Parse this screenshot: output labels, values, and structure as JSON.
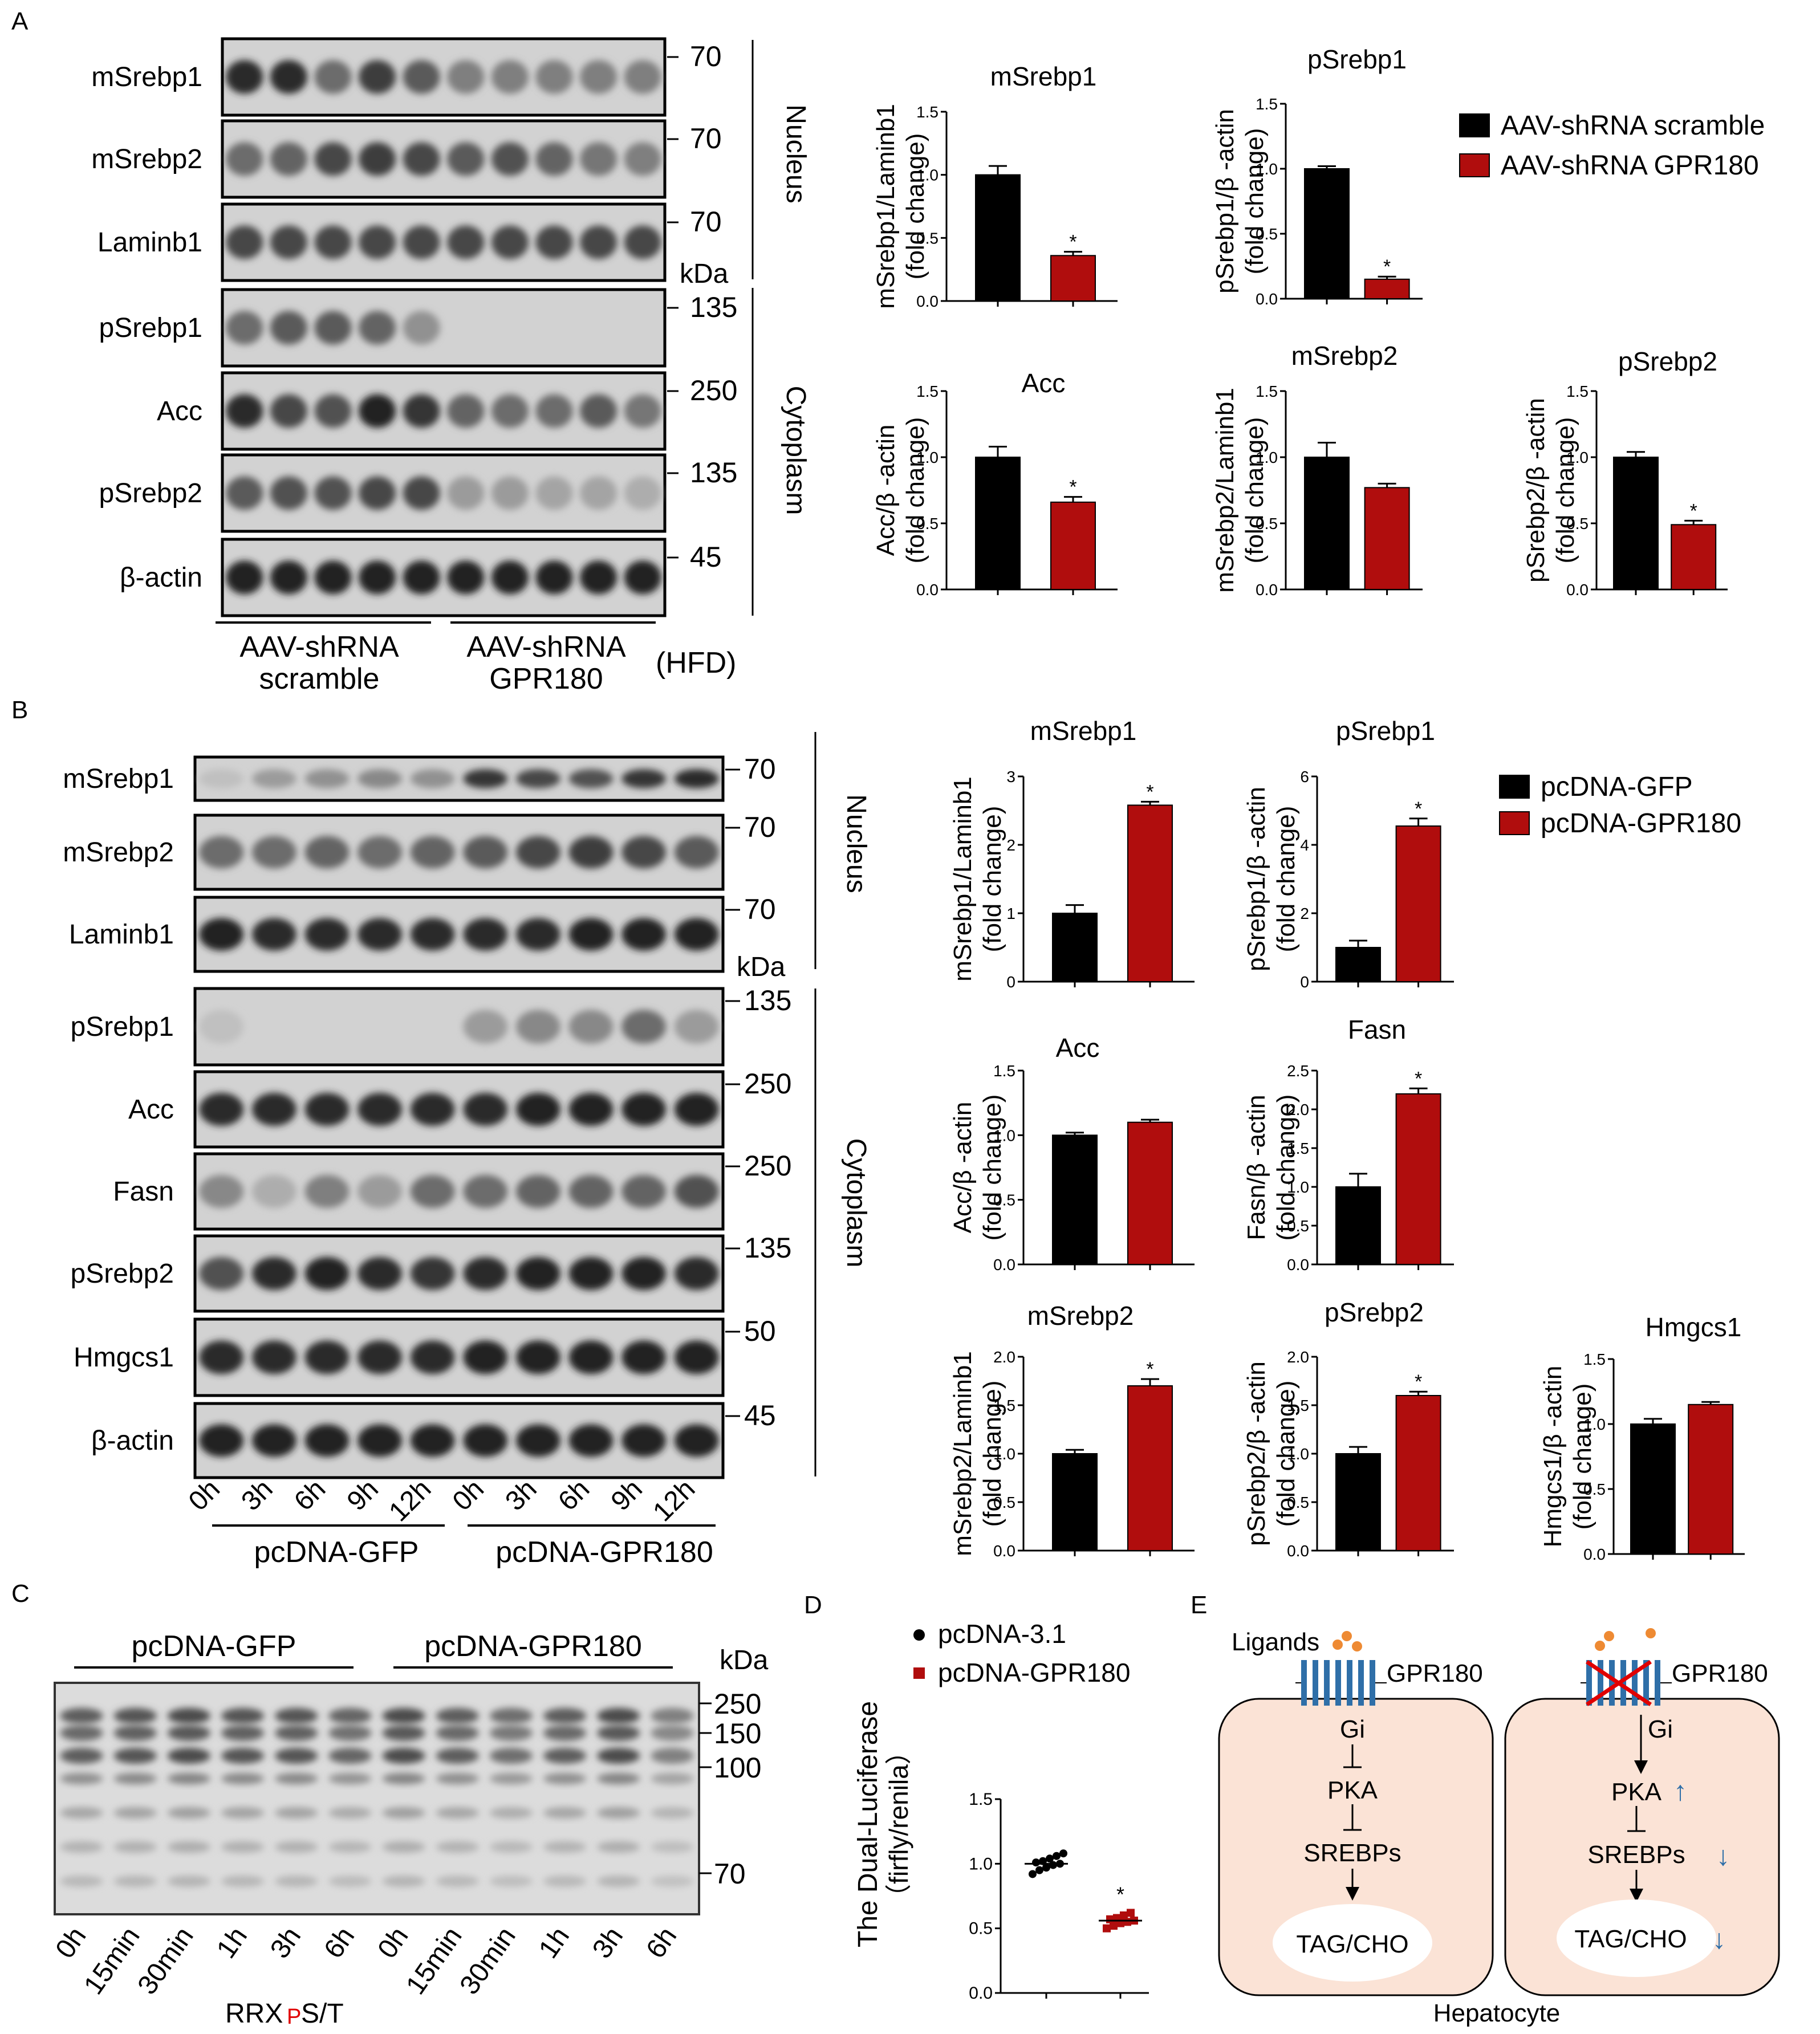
{
  "colors": {
    "black": "#000000",
    "red": "#b00d0d",
    "dot_orange": "#ee8a33",
    "cell_fill": "#fbe3d6",
    "receptor_blue": "#2f6fa8",
    "cross_red": "#e00000",
    "arrow_blue": "#2f6fa8"
  },
  "panels": {
    "A": "A",
    "B": "B",
    "C": "C",
    "D": "D",
    "E": "E"
  },
  "blotA": {
    "rows": [
      {
        "label": "mSrebp1",
        "mw": "70"
      },
      {
        "label": "mSrebp2",
        "mw": "70"
      },
      {
        "label": "Laminb1",
        "mw": "70"
      },
      {
        "label": "pSrebp1",
        "mw": "135"
      },
      {
        "label": "Acc",
        "mw": "250"
      },
      {
        "label": "pSrebp2",
        "mw": "135"
      },
      {
        "label": "β-actin",
        "mw": "45"
      }
    ],
    "kda": "kDa",
    "nucleus": "Nucleus",
    "cytoplasm": "Cytoplasm",
    "group1_line1": "AAV-shRNA",
    "group1_line2": "scramble",
    "group2_line1": "AAV-shRNA",
    "group2_line2": "GPR180",
    "diet": "(HFD)"
  },
  "legendA": {
    "items": [
      "AAV-shRNA scramble",
      "AAV-shRNA GPR180"
    ]
  },
  "blotB": {
    "rows": [
      {
        "label": "mSrebp1",
        "mw": "70"
      },
      {
        "label": "mSrebp2",
        "mw": "70"
      },
      {
        "label": "Laminb1",
        "mw": "70"
      },
      {
        "label": "pSrebp1",
        "mw": "135"
      },
      {
        "label": "Acc",
        "mw": "250"
      },
      {
        "label": "Fasn",
        "mw": "250"
      },
      {
        "label": "pSrebp2",
        "mw": "135"
      },
      {
        "label": "Hmgcs1",
        "mw": "50"
      },
      {
        "label": "β-actin",
        "mw": "45"
      }
    ],
    "kda": "kDa",
    "nucleus": "Nucleus",
    "cytoplasm": "Cytoplasm",
    "lanes": [
      "0h",
      "3h",
      "6h",
      "9h",
      "12h",
      "0h",
      "3h",
      "6h",
      "9h",
      "12h"
    ],
    "group1": "pcDNA-GFP",
    "group2": "pcDNA-GPR180"
  },
  "legendB": {
    "items": [
      "pcDNA-GFP",
      "pcDNA-GPR180"
    ]
  },
  "blotC": {
    "group1": "pcDNA-GFP",
    "group2": "pcDNA-GPR180",
    "kda": "kDa",
    "mw": [
      "250",
      "150",
      "100",
      "70"
    ],
    "lanes": [
      "0h",
      "15min",
      "30min",
      "1h",
      "3h",
      "6h",
      "0h",
      "15min",
      "30min",
      "1h",
      "3h",
      "6h"
    ],
    "motif_a": "RRX",
    "motif_p": "P",
    "motif_b": "S/T"
  },
  "chart_data": [
    {
      "id": "A1",
      "type": "bar",
      "title": "mSrebp1",
      "ylabel_line1": "mSrebp1/Laminb1",
      "ylabel_line2": "(fold change)",
      "ylim": [
        0,
        1.5
      ],
      "yticks": [
        "0.0",
        "0.5",
        "1.0",
        "1.5"
      ],
      "series": [
        {
          "name": "AAV-shRNA scramble",
          "values": [
            1.0
          ],
          "errors": [
            0.07
          ]
        },
        {
          "name": "AAV-shRNA GPR180",
          "values": [
            0.36
          ],
          "errors": [
            0.03
          ]
        }
      ],
      "significance": [
        "",
        "*"
      ]
    },
    {
      "id": "A2",
      "type": "bar",
      "title": "pSrebp1",
      "ylabel_line1": "pSrebp1/β -actin",
      "ylabel_line2": "(fold change)",
      "ylim": [
        0,
        1.5
      ],
      "yticks": [
        "0.0",
        "0.5",
        "1.0",
        "1.5"
      ],
      "series": [
        {
          "name": "AAV-shRNA scramble",
          "values": [
            1.0
          ],
          "errors": [
            0.02
          ]
        },
        {
          "name": "AAV-shRNA GPR180",
          "values": [
            0.15
          ],
          "errors": [
            0.02
          ]
        }
      ],
      "significance": [
        "",
        "*"
      ]
    },
    {
      "id": "A3",
      "type": "bar",
      "title": "Acc",
      "ylabel_line1": "Acc/β -actin",
      "ylabel_line2": "(fold change)",
      "ylim": [
        0,
        1.5
      ],
      "yticks": [
        "0.0",
        "0.5",
        "1.0",
        "1.5"
      ],
      "series": [
        {
          "name": "AAV-shRNA scramble",
          "values": [
            1.0
          ],
          "errors": [
            0.08
          ]
        },
        {
          "name": "AAV-shRNA GPR180",
          "values": [
            0.66
          ],
          "errors": [
            0.04
          ]
        }
      ],
      "significance": [
        "",
        "*"
      ]
    },
    {
      "id": "A4",
      "type": "bar",
      "title": "mSrebp2",
      "ylabel_line1": "mSrebp2/Laminb1",
      "ylabel_line2": "(fold change)",
      "ylim": [
        0,
        1.5
      ],
      "yticks": [
        "0.0",
        "0.5",
        "1.0",
        "1.5"
      ],
      "series": [
        {
          "name": "AAV-shRNA scramble",
          "values": [
            1.0
          ],
          "errors": [
            0.11
          ]
        },
        {
          "name": "AAV-shRNA GPR180",
          "values": [
            0.77
          ],
          "errors": [
            0.03
          ]
        }
      ],
      "significance": [
        "",
        ""
      ]
    },
    {
      "id": "A5",
      "type": "bar",
      "title": "pSrebp2",
      "ylabel_line1": "pSrebp2/β -actin",
      "ylabel_line2": "(fold change)",
      "ylim": [
        0,
        1.5
      ],
      "yticks": [
        "0.0",
        "0.5",
        "1.0",
        "1.5"
      ],
      "series": [
        {
          "name": "AAV-shRNA scramble",
          "values": [
            1.0
          ],
          "errors": [
            0.04
          ]
        },
        {
          "name": "AAV-shRNA GPR180",
          "values": [
            0.49
          ],
          "errors": [
            0.03
          ]
        }
      ],
      "significance": [
        "",
        "*"
      ]
    },
    {
      "id": "B1",
      "type": "bar",
      "title": "mSrebp1",
      "ylabel_line1": "mSrebp1/Laminb1",
      "ylabel_line2": "(fold change)",
      "ylim": [
        0,
        3
      ],
      "yticks": [
        "0",
        "1",
        "2",
        "3"
      ],
      "series": [
        {
          "name": "pcDNA-GFP",
          "values": [
            1.0
          ],
          "errors": [
            0.12
          ]
        },
        {
          "name": "pcDNA-GPR180",
          "values": [
            2.58
          ],
          "errors": [
            0.05
          ]
        }
      ],
      "significance": [
        "",
        "*"
      ]
    },
    {
      "id": "B2",
      "type": "bar",
      "title": "pSrebp1",
      "ylabel_line1": "pSrebp1/β -actin",
      "ylabel_line2": "(fold change)",
      "ylim": [
        0,
        6
      ],
      "yticks": [
        "0",
        "2",
        "4",
        "6"
      ],
      "series": [
        {
          "name": "pcDNA-GFP",
          "values": [
            1.0
          ],
          "errors": [
            0.2
          ]
        },
        {
          "name": "pcDNA-GPR180",
          "values": [
            4.55
          ],
          "errors": [
            0.22
          ]
        }
      ],
      "significance": [
        "",
        "*"
      ]
    },
    {
      "id": "B3",
      "type": "bar",
      "title": "Acc",
      "ylabel_line1": "Acc/β -actin",
      "ylabel_line2": "(fold change)",
      "ylim": [
        0,
        1.5
      ],
      "yticks": [
        "0.0",
        "0.5",
        "1.0",
        "1.5"
      ],
      "series": [
        {
          "name": "pcDNA-GFP",
          "values": [
            1.0
          ],
          "errors": [
            0.02
          ]
        },
        {
          "name": "pcDNA-GPR180",
          "values": [
            1.1
          ],
          "errors": [
            0.02
          ]
        }
      ],
      "significance": [
        "",
        ""
      ]
    },
    {
      "id": "B4",
      "type": "bar",
      "title": "Fasn",
      "ylabel_line1": "Fasn/β -actin",
      "ylabel_line2": "(fold change)",
      "ylim": [
        0,
        2.5
      ],
      "yticks": [
        "0.0",
        "0.5",
        "1.0",
        "1.5",
        "2.0",
        "2.5"
      ],
      "series": [
        {
          "name": "pcDNA-GFP",
          "values": [
            1.0
          ],
          "errors": [
            0.17
          ]
        },
        {
          "name": "pcDNA-GPR180",
          "values": [
            2.2
          ],
          "errors": [
            0.07
          ]
        }
      ],
      "significance": [
        "",
        "*"
      ]
    },
    {
      "id": "B5",
      "type": "bar",
      "title": "mSrebp2",
      "ylabel_line1": "mSrebp2/Laminb1",
      "ylabel_line2": "(fold change)",
      "ylim": [
        0,
        2.0
      ],
      "yticks": [
        "0.0",
        "0.5",
        "1.0",
        "1.5",
        "2.0"
      ],
      "series": [
        {
          "name": "pcDNA-GFP",
          "values": [
            1.0
          ],
          "errors": [
            0.04
          ]
        },
        {
          "name": "pcDNA-GPR180",
          "values": [
            1.7
          ],
          "errors": [
            0.07
          ]
        }
      ],
      "significance": [
        "",
        "*"
      ]
    },
    {
      "id": "B6",
      "type": "bar",
      "title": "pSrebp2",
      "ylabel_line1": "pSrebp2/β -actin",
      "ylabel_line2": "(fold change)",
      "ylim": [
        0,
        2.0
      ],
      "yticks": [
        "0.0",
        "0.5",
        "1.0",
        "1.5",
        "2.0"
      ],
      "series": [
        {
          "name": "pcDNA-GFP",
          "values": [
            1.0
          ],
          "errors": [
            0.07
          ]
        },
        {
          "name": "pcDNA-GPR180",
          "values": [
            1.6
          ],
          "errors": [
            0.04
          ]
        }
      ],
      "significance": [
        "",
        "*"
      ]
    },
    {
      "id": "B7",
      "type": "bar",
      "title": "Hmgcs1",
      "ylabel_line1": "Hmgcs1/β -actin",
      "ylabel_line2": "(fold change)",
      "ylim": [
        0,
        1.5
      ],
      "yticks": [
        "0.0",
        "0.5",
        "1.0",
        "1.5"
      ],
      "series": [
        {
          "name": "pcDNA-GFP",
          "values": [
            1.0
          ],
          "errors": [
            0.04
          ]
        },
        {
          "name": "pcDNA-GPR180",
          "values": [
            1.15
          ],
          "errors": [
            0.02
          ]
        }
      ],
      "significance": [
        "",
        ""
      ]
    },
    {
      "id": "D",
      "type": "scatter",
      "title": "",
      "ylabel_line1": "The Dual-Luciferase",
      "ylabel_line2": "（firfly/renila）",
      "ylim": [
        0,
        1.5
      ],
      "yticks": [
        "0.0",
        "0.5",
        "1.0",
        "1.5"
      ],
      "series": [
        {
          "name": "pcDNA-3.1",
          "mean": 1.0,
          "points": [
            0.92,
            0.95,
            0.97,
            0.99,
            1.0,
            1.01,
            1.02,
            1.04,
            1.06,
            1.08
          ]
        },
        {
          "name": "pcDNA-GPR180",
          "mean": 0.56,
          "points": [
            0.5,
            0.52,
            0.54,
            0.55,
            0.56,
            0.57,
            0.58,
            0.6,
            0.62
          ]
        }
      ],
      "significance": [
        "",
        "*"
      ]
    }
  ],
  "diagramE": {
    "ligands": "Ligands",
    "receptor": "GPR180",
    "gi": "Gi",
    "pka": "PKA",
    "srebps": "SREBPs",
    "tag": "TAG/CHO",
    "up": "↑",
    "down": "↓",
    "hepatocyte": "Hepatocyte"
  }
}
